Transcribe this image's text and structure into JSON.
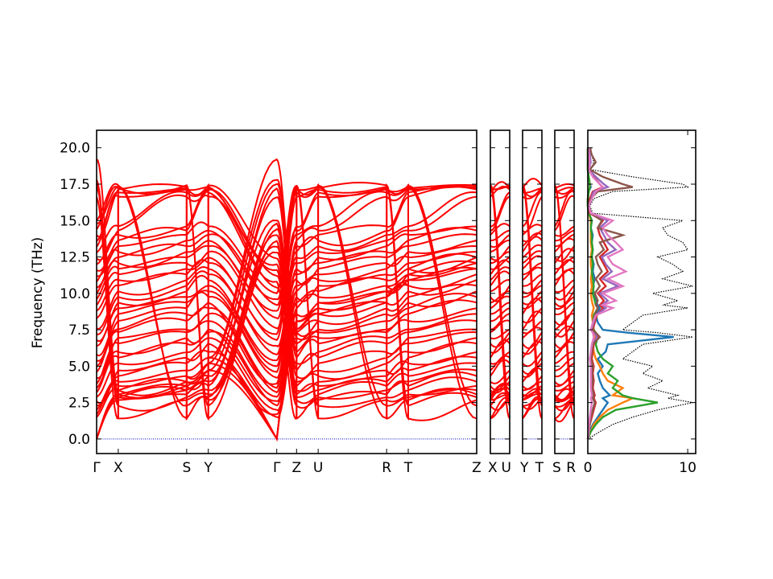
{
  "chart_data": {
    "type": "line",
    "description_type": "phonon band structure with projected density of states",
    "ylabel": "Frequency (THz)",
    "ylim": [
      -1.0,
      21.2
    ],
    "yticks": [
      0.0,
      2.5,
      5.0,
      7.5,
      10.0,
      12.5,
      15.0,
      17.5,
      20.0
    ],
    "ytick_labels": [
      "0.0",
      "2.5",
      "5.0",
      "7.5",
      "10.0",
      "12.5",
      "15.0",
      "17.5",
      "20.0"
    ],
    "band_color": "#ff0000",
    "zero_line_color": "#0000cc",
    "band_panels": [
      {
        "segments": [
          {
            "from": "Γ",
            "to": "X",
            "length": 0.12
          },
          {
            "from": "X",
            "to": "S",
            "length": 0.38
          },
          {
            "from": "S",
            "to": "Y",
            "length": 0.12
          },
          {
            "from": "Y",
            "to": "Γ",
            "length": 0.38
          },
          {
            "from": "Γ",
            "to": "Z",
            "length": 0.11
          },
          {
            "from": "Z",
            "to": "U",
            "length": 0.12
          },
          {
            "from": "U",
            "to": "R",
            "length": 0.38
          },
          {
            "from": "R",
            "to": "T",
            "length": 0.12
          },
          {
            "from": "T",
            "to": "Z",
            "length": 0.38
          }
        ],
        "tick_labels": [
          "Γ",
          "X",
          "S",
          "Y",
          "Γ",
          "Z",
          "U",
          "R",
          "T",
          "Z"
        ]
      },
      {
        "segments": [
          {
            "from": "X",
            "to": "U",
            "length": 1.0
          }
        ],
        "tick_labels": [
          "X",
          "U"
        ]
      },
      {
        "segments": [
          {
            "from": "Y",
            "to": "T",
            "length": 1.0
          }
        ],
        "tick_labels": [
          "Y",
          "T"
        ]
      },
      {
        "segments": [
          {
            "from": "S",
            "to": "R",
            "length": 1.0
          }
        ],
        "tick_labels": [
          "S",
          "R"
        ]
      }
    ],
    "gamma_frequencies": [
      0.0,
      0.0,
      0.0,
      1.5,
      1.7,
      2.0,
      2.3,
      2.6,
      2.9,
      3.2,
      3.5,
      3.8,
      4.2,
      4.6,
      5.0,
      5.4,
      5.8,
      6.4,
      6.8,
      7.2,
      7.6,
      8.3,
      8.8,
      9.2,
      9.6,
      10.0,
      10.4,
      10.8,
      11.2,
      11.6,
      12.0,
      12.4,
      12.8,
      13.2,
      13.6,
      14.0,
      14.4,
      14.8,
      15.0,
      16.6,
      17.2,
      17.5,
      17.8,
      19.2,
      19.6,
      20.0
    ],
    "zone_edge_frequencies": [
      1.3,
      2.2,
      2.6,
      2.8,
      3.0,
      3.3,
      3.6,
      3.9,
      4.3,
      4.7,
      5.2,
      5.6,
      6.0,
      6.6,
      7.0,
      7.4,
      7.6,
      8.2,
      8.7,
      9.1,
      9.5,
      9.9,
      10.3,
      10.7,
      11.1,
      11.5,
      11.9,
      12.3,
      12.7,
      13.1,
      13.5,
      13.9,
      14.3,
      14.6,
      14.9,
      17.0,
      17.3,
      17.5,
      17.6,
      17.7,
      17.8
    ],
    "dos": {
      "xlim": [
        0,
        10.8
      ],
      "xticks": [
        0,
        10
      ],
      "xtick_labels": [
        "0",
        "10"
      ],
      "frequency": [
        0.0,
        0.5,
        1.0,
        1.5,
        2.0,
        2.5,
        2.8,
        3.0,
        3.5,
        4.0,
        4.5,
        5.0,
        5.5,
        6.0,
        6.5,
        7.0,
        7.3,
        7.5,
        8.0,
        8.5,
        9.0,
        9.2,
        9.5,
        10.0,
        10.5,
        11.0,
        11.5,
        12.0,
        12.5,
        13.0,
        13.5,
        14.0,
        14.5,
        15.0,
        15.5,
        16.0,
        16.5,
        17.0,
        17.3,
        17.5,
        18.0,
        18.5,
        19.0,
        19.5,
        20.0
      ],
      "series": [
        {
          "name": "",
          "color": "#000000",
          "style": "dotted",
          "values": [
            0.0,
            1.2,
            2.5,
            4.5,
            7.0,
            10.5,
            8.0,
            9.0,
            6.0,
            7.5,
            5.5,
            6.5,
            3.5,
            4.5,
            5.5,
            10.5,
            7.0,
            3.5,
            4.5,
            5.5,
            10.0,
            7.5,
            9.0,
            6.5,
            10.5,
            7.5,
            9.5,
            8.5,
            7.0,
            10.0,
            9.5,
            8.0,
            7.5,
            9.5,
            0.5,
            0.2,
            0.6,
            2.5,
            10.0,
            9.5,
            4.5,
            0.3,
            0.6,
            0.4,
            0.3
          ]
        },
        {
          "name": "",
          "color": "#1f77b4",
          "style": "solid",
          "values": [
            0.0,
            0.2,
            0.5,
            1.0,
            1.5,
            2.0,
            1.5,
            2.2,
            1.5,
            1.2,
            1.0,
            1.5,
            1.0,
            1.8,
            2.0,
            8.6,
            4.0,
            1.5,
            1.0,
            0.8,
            1.2,
            1.0,
            0.8,
            0.6,
            0.5,
            0.7,
            0.5,
            0.6,
            0.4,
            0.5,
            0.4,
            0.5,
            0.3,
            0.4,
            0.1,
            0.0,
            0.0,
            0.1,
            0.3,
            0.2,
            0.1,
            0.0,
            0.0,
            0.0,
            0.0
          ]
        },
        {
          "name": "",
          "color": "#ff7f0e",
          "style": "solid",
          "values": [
            0.0,
            0.3,
            0.6,
            1.2,
            2.0,
            3.5,
            4.5,
            2.5,
            3.5,
            2.0,
            1.5,
            1.2,
            0.8,
            0.6,
            0.5,
            0.8,
            0.6,
            0.4,
            0.5,
            0.4,
            0.6,
            0.5,
            0.4,
            0.3,
            0.4,
            0.3,
            0.4,
            0.3,
            0.3,
            0.4,
            0.3,
            0.3,
            0.3,
            0.3,
            0.1,
            0.0,
            0.0,
            0.1,
            0.2,
            0.2,
            0.1,
            0.0,
            0.0,
            0.0,
            0.0
          ]
        },
        {
          "name": "",
          "color": "#2ca02c",
          "style": "solid",
          "values": [
            0.0,
            0.3,
            0.8,
            1.5,
            2.8,
            7.0,
            4.5,
            3.5,
            2.5,
            3.0,
            2.0,
            2.5,
            1.5,
            1.0,
            0.8,
            1.0,
            0.8,
            0.6,
            0.5,
            0.6,
            1.0,
            0.8,
            0.7,
            0.5,
            0.6,
            0.5,
            0.4,
            0.5,
            0.4,
            0.5,
            0.4,
            0.4,
            0.3,
            0.4,
            0.1,
            0.0,
            0.0,
            0.1,
            0.2,
            0.2,
            0.1,
            0.0,
            0.0,
            0.0,
            0.0
          ]
        },
        {
          "name": "",
          "color": "#d62728",
          "style": "solid",
          "values": [
            0.0,
            0.1,
            0.2,
            0.4,
            0.6,
            0.8,
            0.6,
            0.7,
            0.5,
            0.6,
            0.5,
            0.6,
            0.4,
            0.5,
            0.6,
            1.0,
            0.8,
            0.5,
            0.7,
            0.9,
            1.5,
            1.2,
            1.6,
            1.0,
            1.8,
            1.2,
            2.0,
            1.6,
            1.2,
            2.0,
            1.6,
            1.2,
            1.0,
            1.5,
            0.2,
            0.1,
            0.2,
            0.5,
            1.5,
            1.2,
            0.6,
            0.1,
            0.2,
            0.1,
            0.1
          ]
        },
        {
          "name": "",
          "color": "#9467bd",
          "style": "solid",
          "values": [
            0.0,
            0.1,
            0.2,
            0.3,
            0.5,
            0.7,
            0.5,
            0.6,
            0.4,
            0.5,
            0.4,
            0.5,
            0.3,
            0.4,
            0.5,
            0.9,
            0.7,
            0.4,
            0.6,
            0.8,
            1.8,
            1.4,
            2.0,
            1.2,
            3.0,
            1.5,
            2.4,
            1.8,
            1.4,
            2.8,
            2.0,
            1.6,
            1.2,
            2.0,
            0.3,
            0.1,
            0.3,
            0.6,
            2.0,
            1.6,
            0.8,
            0.1,
            0.3,
            0.2,
            0.1
          ]
        },
        {
          "name": "",
          "color": "#8c564b",
          "style": "solid",
          "values": [
            0.0,
            0.1,
            0.2,
            0.3,
            0.5,
            0.7,
            0.5,
            0.6,
            0.4,
            0.5,
            0.4,
            0.5,
            0.3,
            0.4,
            0.5,
            1.2,
            0.8,
            0.4,
            0.5,
            0.7,
            1.0,
            0.8,
            1.0,
            0.7,
            1.2,
            0.8,
            1.4,
            1.0,
            0.8,
            1.6,
            1.2,
            3.5,
            1.0,
            1.4,
            0.3,
            0.1,
            0.3,
            1.0,
            4.5,
            3.5,
            1.5,
            0.2,
            0.8,
            0.4,
            0.2
          ]
        },
        {
          "name": "",
          "color": "#e377c2",
          "style": "solid",
          "values": [
            0.0,
            0.1,
            0.1,
            0.2,
            0.3,
            0.4,
            0.3,
            0.4,
            0.3,
            0.3,
            0.3,
            0.3,
            0.2,
            0.3,
            0.4,
            0.6,
            0.5,
            0.3,
            0.5,
            0.8,
            2.5,
            1.5,
            2.8,
            1.5,
            3.5,
            2.0,
            3.8,
            2.5,
            2.0,
            3.5,
            2.8,
            2.0,
            1.5,
            2.5,
            0.3,
            0.1,
            0.4,
            0.8,
            1.5,
            1.2,
            0.5,
            0.1,
            0.2,
            0.1,
            0.1
          ]
        }
      ]
    }
  }
}
